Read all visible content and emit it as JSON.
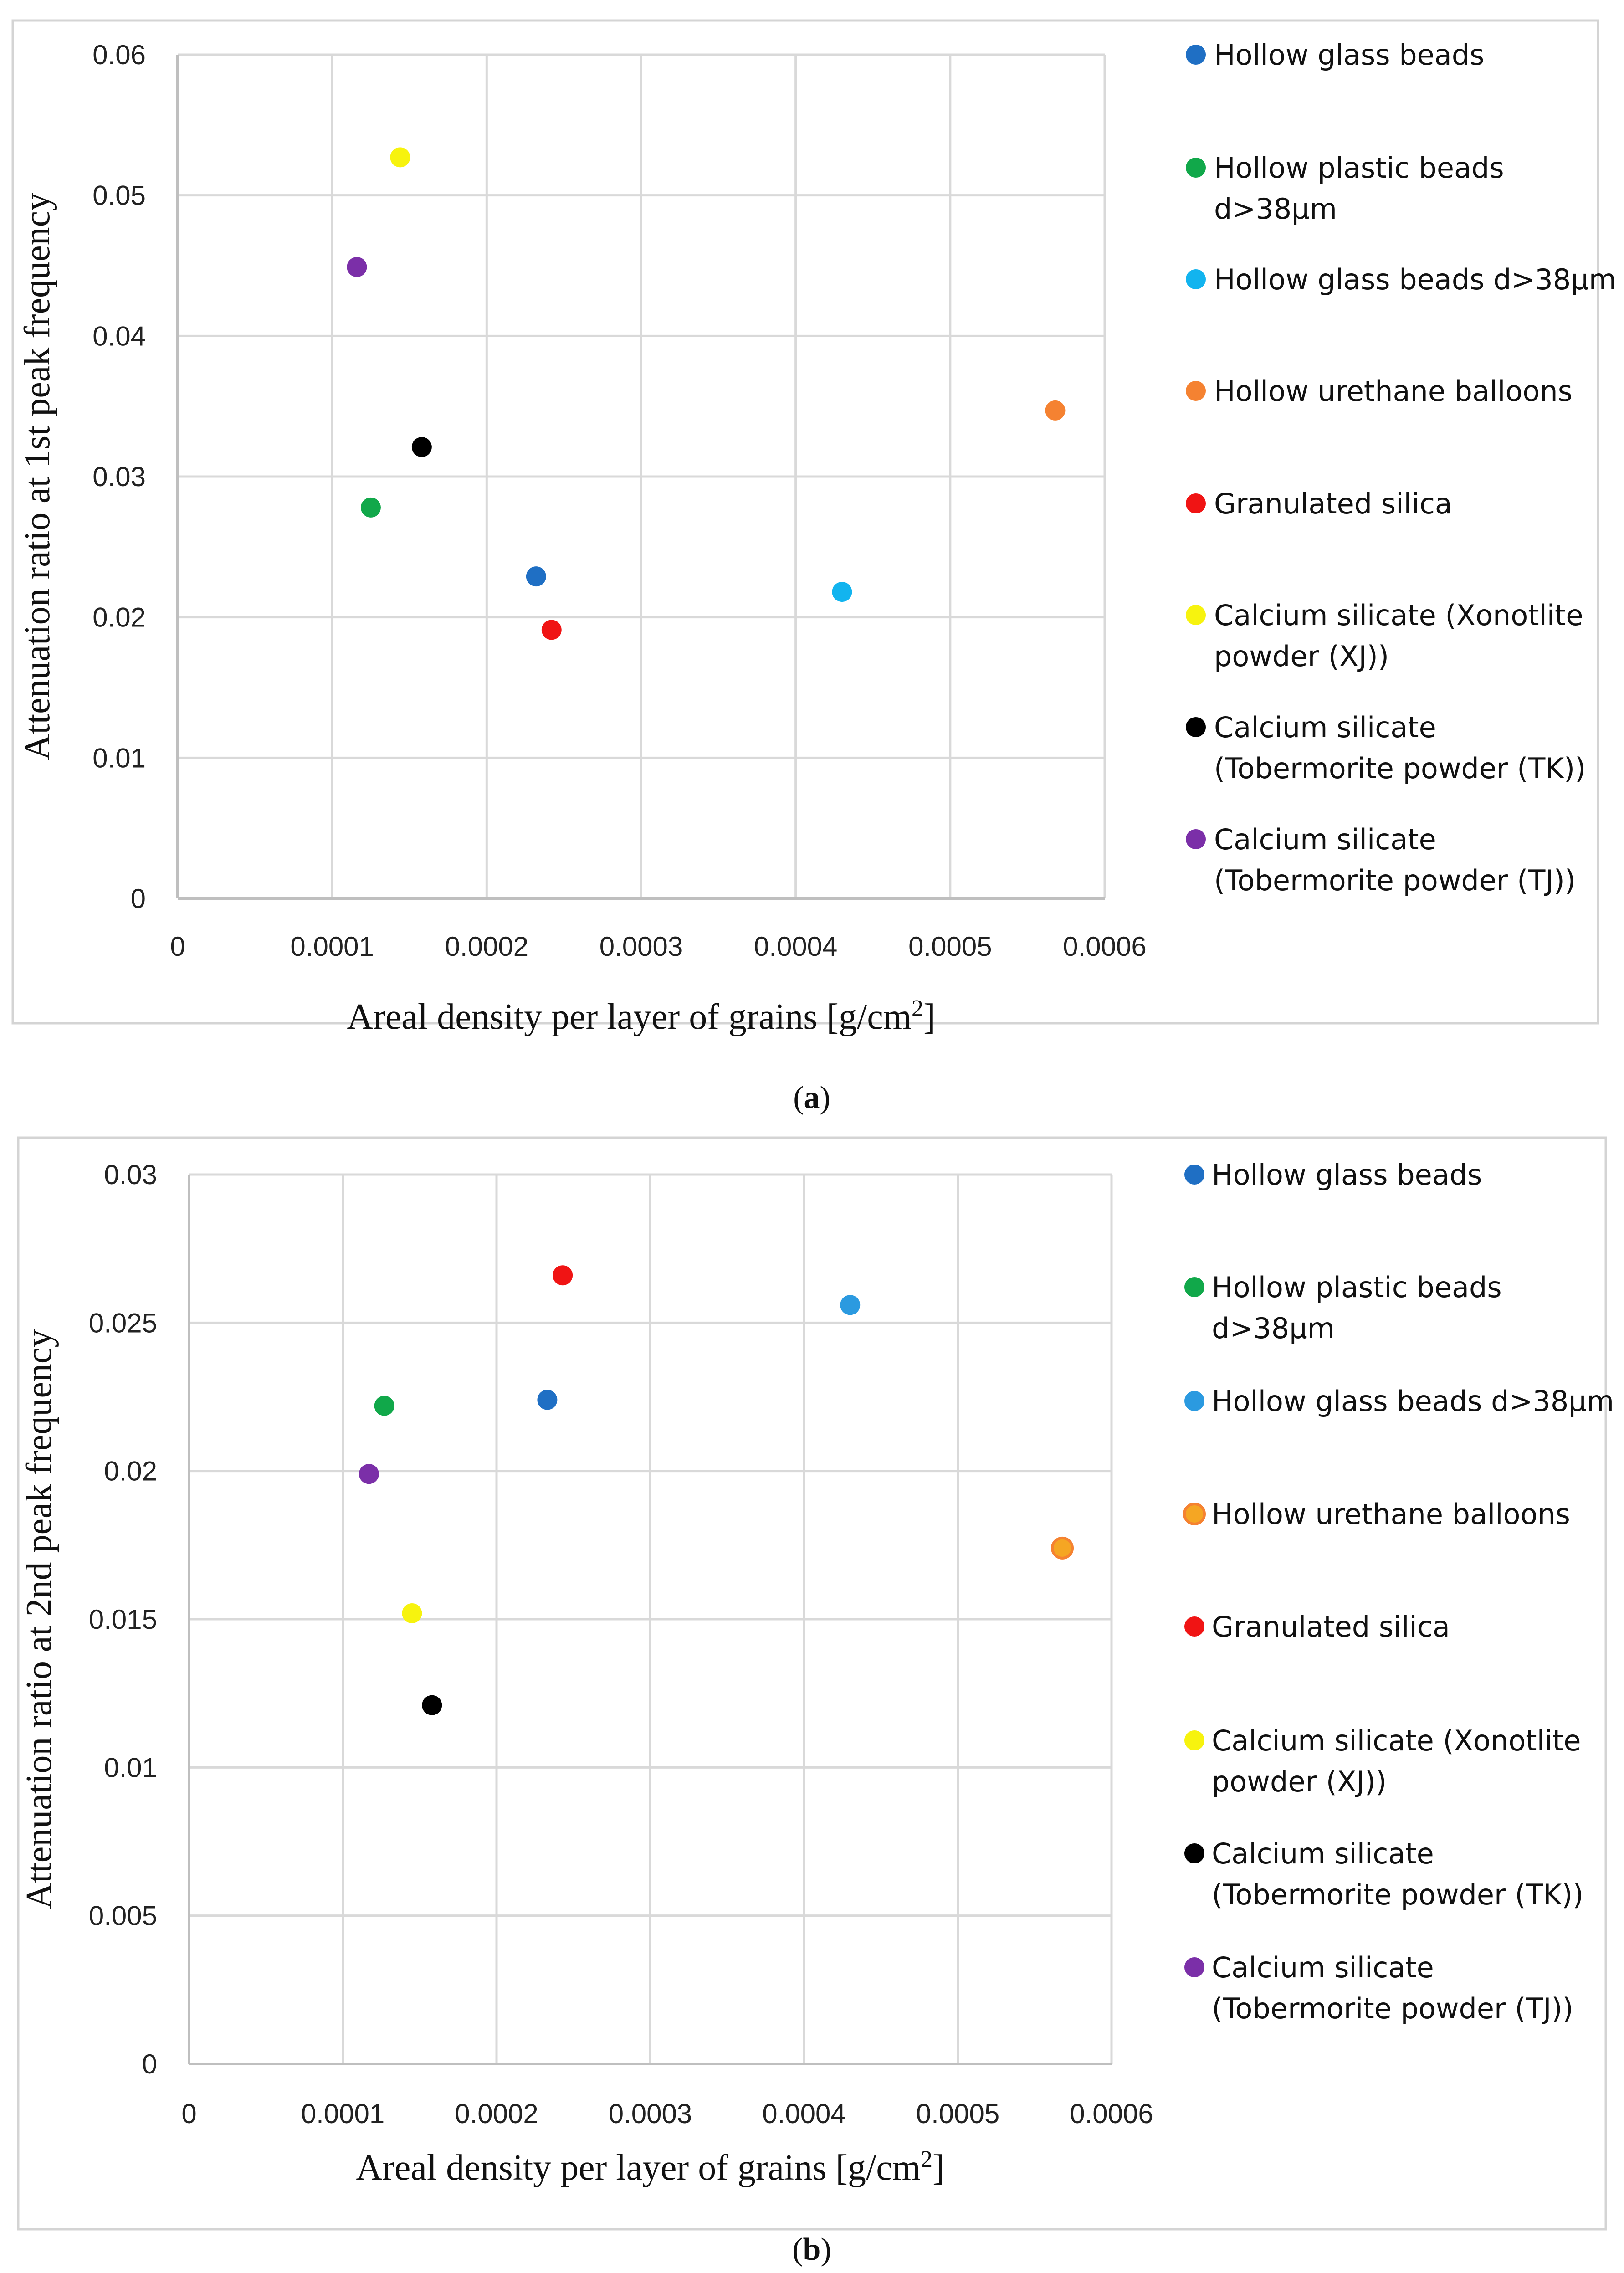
{
  "chart_data": [
    {
      "type": "scatter",
      "panel_label_open": "(",
      "panel_label_letter": "a",
      "panel_label_close": ")",
      "xlabel": "Areal density per layer of grains [g/cm",
      "xlabel_sup": "2",
      "xlabel_end": "]",
      "ylabel": "Attenuation ratio at 1st peak frequency",
      "xlim": [
        0,
        0.0006
      ],
      "ylim": [
        0,
        0.06
      ],
      "xticks": [
        0,
        0.0001,
        0.0002,
        0.0003,
        0.0004,
        0.0005,
        0.0006
      ],
      "xtick_labels": [
        "0",
        "0.0001",
        "0.0002",
        "0.0003",
        "0.0004",
        "0.0005",
        "0.0006"
      ],
      "yticks": [
        0,
        0.01,
        0.02,
        0.03,
        0.04,
        0.05,
        0.06
      ],
      "ytick_labels": [
        "0",
        "0.01",
        "0.02",
        "0.03",
        "0.04",
        "0.05",
        "0.06"
      ],
      "grid": true,
      "legend_position": "right",
      "series": [
        {
          "name": "Hollow glass beads",
          "legend_lines": [
            "Hollow glass beads"
          ],
          "color": "#1f6fc4",
          "x": [
            0.000232
          ],
          "y": [
            0.0229
          ]
        },
        {
          "name": "Hollow plastic beads d>38μm",
          "legend_lines": [
            "Hollow plastic beads",
            "d>38μm"
          ],
          "color": "#11a84a",
          "x": [
            0.000125
          ],
          "y": [
            0.0278
          ]
        },
        {
          "name": "Hollow glass beads d>38μm",
          "legend_lines": [
            "Hollow glass beads d>38μm"
          ],
          "color": "#12b4ef",
          "x": [
            0.00043
          ],
          "y": [
            0.0218
          ]
        },
        {
          "name": "Hollow urethane balloons",
          "legend_lines": [
            "Hollow urethane balloons"
          ],
          "color": "#f58231",
          "x": [
            0.000568
          ],
          "y": [
            0.0347
          ]
        },
        {
          "name": "Granulated silica",
          "legend_lines": [
            "Granulated silica"
          ],
          "color": "#f01414",
          "x": [
            0.000242
          ],
          "y": [
            0.0191
          ]
        },
        {
          "name": "Calcium silicate (Xonotlite powder (XJ))",
          "legend_lines": [
            "Calcium silicate (Xonotlite",
            "powder (XJ))"
          ],
          "color": "#f7f30e",
          "x": [
            0.000144
          ],
          "y": [
            0.0527
          ]
        },
        {
          "name": "Calcium silicate (Tobermorite powder (TK))",
          "legend_lines": [
            "Calcium silicate",
            "(Tobermorite powder (TK))"
          ],
          "color": "#000000",
          "x": [
            0.000158
          ],
          "y": [
            0.0321
          ]
        },
        {
          "name": "Calcium silicate (Tobermorite powder (TJ))",
          "legend_lines": [
            "Calcium silicate",
            "(Tobermorite powder (TJ))"
          ],
          "color": "#7b2fa8",
          "x": [
            0.000116
          ],
          "y": [
            0.0449
          ]
        }
      ]
    },
    {
      "type": "scatter",
      "panel_label_open": "(",
      "panel_label_letter": "b",
      "panel_label_close": ")",
      "xlabel": "Areal density per layer of grains [g/cm",
      "xlabel_sup": "2",
      "xlabel_end": "]",
      "ylabel": "Attenuation ratio at 2nd peak frequency",
      "xlim": [
        0,
        0.0006
      ],
      "ylim": [
        0,
        0.03
      ],
      "xticks": [
        0,
        0.0001,
        0.0002,
        0.0003,
        0.0004,
        0.0005,
        0.0006
      ],
      "xtick_labels": [
        "0",
        "0.0001",
        "0.0002",
        "0.0003",
        "0.0004",
        "0.0005",
        "0.0006"
      ],
      "yticks": [
        0,
        0.005,
        0.01,
        0.015,
        0.02,
        0.025,
        0.03
      ],
      "ytick_labels": [
        "0",
        "0.005",
        "0.01",
        "0.015",
        "0.02",
        "0.025",
        "0.03"
      ],
      "grid": true,
      "legend_position": "right",
      "series": [
        {
          "name": "Hollow glass beads",
          "legend_lines": [
            "Hollow glass beads"
          ],
          "color": "#1f6fc4",
          "x": [
            0.000233
          ],
          "y": [
            0.0224
          ]
        },
        {
          "name": "Hollow plastic beads d>38μm",
          "legend_lines": [
            "Hollow plastic beads",
            "d>38μm"
          ],
          "color": "#11a84a",
          "x": [
            0.000127
          ],
          "y": [
            0.0222
          ]
        },
        {
          "name": "Hollow glass beads d>38μm",
          "legend_lines": [
            "Hollow glass beads d>38μm"
          ],
          "color": "#2b9ae0",
          "x": [
            0.00043
          ],
          "y": [
            0.0256
          ]
        },
        {
          "name": "Hollow urethane balloons",
          "legend_lines": [
            "Hollow urethane balloons"
          ],
          "color": "#f5a623",
          "edge": "#f58231",
          "x": [
            0.000568
          ],
          "y": [
            0.0174
          ]
        },
        {
          "name": "Granulated silica",
          "legend_lines": [
            "Granulated silica"
          ],
          "color": "#f01414",
          "x": [
            0.000243
          ],
          "y": [
            0.0266
          ]
        },
        {
          "name": "Calcium silicate (Xonotlite powder (XJ))",
          "legend_lines": [
            "Calcium silicate (Xonotlite",
            "powder (XJ))"
          ],
          "color": "#f7f30e",
          "x": [
            0.000145
          ],
          "y": [
            0.0152
          ]
        },
        {
          "name": "Calcium silicate (Tobermorite powder (TK))",
          "legend_lines": [
            "Calcium silicate",
            "(Tobermorite powder (TK))"
          ],
          "color": "#000000",
          "x": [
            0.000158
          ],
          "y": [
            0.0121
          ]
        },
        {
          "name": "Calcium silicate (Tobermorite powder (TJ))",
          "legend_lines": [
            "Calcium silicate",
            "(Tobermorite powder (TJ))"
          ],
          "color": "#7b2fa8",
          "x": [
            0.000117
          ],
          "y": [
            0.0199
          ]
        }
      ]
    }
  ]
}
